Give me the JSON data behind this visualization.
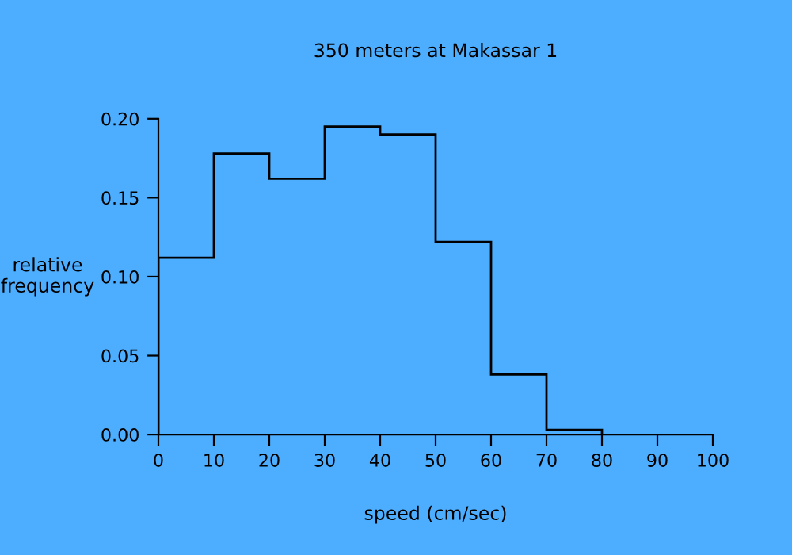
{
  "chart_data": {
    "type": "histogram",
    "title": "350 meters at Makassar 1",
    "xlabel": "speed (cm/sec)",
    "ylabel": "relative\nfrequency",
    "bins": [
      0,
      10,
      20,
      30,
      40,
      50,
      60,
      70,
      80
    ],
    "values": [
      0.112,
      0.178,
      0.162,
      0.195,
      0.19,
      0.122,
      0.038,
      0.003
    ],
    "color": "#000000",
    "xlim": [
      0,
      100
    ],
    "ylim": [
      0,
      0.2
    ],
    "xticks": [
      0,
      10,
      20,
      30,
      40,
      50,
      60,
      70,
      80,
      90,
      100
    ],
    "yticks": [
      {
        "value": 0,
        "label": "0.00"
      },
      {
        "value": 0.05,
        "label": "0.05"
      },
      {
        "value": 0.1,
        "label": "0.10"
      },
      {
        "value": 0.15,
        "label": "0.15"
      },
      {
        "value": 0.2,
        "label": "0.20"
      }
    ],
    "grid": false
  }
}
